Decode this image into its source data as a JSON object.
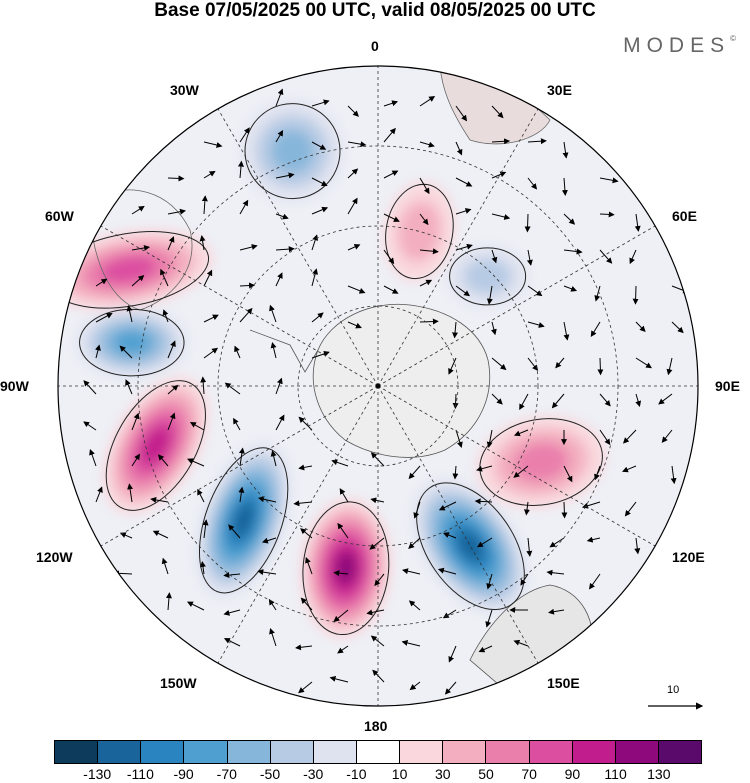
{
  "title": "Base 07/05/2025 00 UTC, valid 08/05/2025 00 UTC",
  "brand": "MODES",
  "brand_mark": "©",
  "longitude_labels": {
    "lon_0": "0",
    "lon_30e": "30E",
    "lon_60e": "60E",
    "lon_90e": "90E",
    "lon_120e": "120E",
    "lon_150e": "150E",
    "lon_180": "180",
    "lon_150w": "150W",
    "lon_120w": "120W",
    "lon_90w": "90W",
    "lon_60w": "60W",
    "lon_30w": "30W"
  },
  "vector_reference": "10",
  "colorbar": {
    "colors": [
      "#0d3b5c",
      "#19649a",
      "#2a84bf",
      "#4fa0d1",
      "#86b6da",
      "#b7cbe4",
      "#dfe2ef",
      "#ffffff",
      "#f9d7dc",
      "#f3aebf",
      "#ea7fac",
      "#dc4ea0",
      "#c21d8c",
      "#8e0a7c",
      "#5a0a6b"
    ],
    "labels": [
      "-130",
      "-110",
      "-90",
      "-70",
      "-50",
      "-30",
      "-10",
      "10",
      "30",
      "50",
      "70",
      "90",
      "110",
      "130"
    ]
  },
  "anomaly_centres": [
    {
      "lon": "80W",
      "sign": "negative",
      "value": -90
    },
    {
      "lon": "65W",
      "sign": "positive",
      "value": 90
    },
    {
      "lon": "105W",
      "sign": "positive",
      "value": 110
    },
    {
      "lon": "135W",
      "sign": "negative",
      "value": -130
    },
    {
      "lon": "170W",
      "sign": "positive",
      "value": 130
    },
    {
      "lon": "150E",
      "sign": "negative",
      "value": -130
    },
    {
      "lon": "115E",
      "sign": "positive",
      "value": 70
    },
    {
      "lon": "20W",
      "sign": "negative",
      "value": -70
    },
    {
      "lon": "15E",
      "sign": "positive",
      "value": 50
    },
    {
      "lon": "45E",
      "sign": "negative",
      "value": -50
    }
  ]
}
